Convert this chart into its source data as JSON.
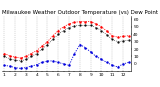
{
  "title": "Milwaukee Weather Outdoor Temperature (vs) Dew Point (Last 24 Hours)",
  "background_color": "#ffffff",
  "temp": [
    14,
    11,
    9,
    8,
    10,
    14,
    18,
    24,
    30,
    38,
    45,
    50,
    54,
    56,
    57,
    57,
    57,
    54,
    50,
    44,
    38,
    36,
    37,
    38
  ],
  "dew": [
    -2,
    -3,
    -5,
    -6,
    -5,
    -3,
    -1,
    2,
    4,
    4,
    2,
    0,
    -2,
    14,
    26,
    22,
    16,
    10,
    6,
    2,
    -2,
    -4,
    0,
    2
  ],
  "felt": [
    10,
    7,
    5,
    4,
    6,
    10,
    14,
    20,
    26,
    33,
    40,
    45,
    49,
    51,
    52,
    52,
    52,
    49,
    45,
    39,
    33,
    30,
    31,
    32
  ],
  "n_points": 24,
  "x_tick_positions": [
    0,
    1,
    2,
    3,
    4,
    5,
    6,
    7,
    8,
    9,
    10,
    11,
    12,
    13,
    14,
    15,
    16,
    17,
    18,
    19,
    20,
    21,
    22,
    23
  ],
  "x_tick_labels": [
    "1",
    "",
    "2",
    "",
    "3",
    "",
    "4",
    "",
    "5",
    "",
    "6",
    "",
    "7",
    "",
    "8",
    "",
    "9",
    "",
    "10",
    "",
    "11",
    "",
    "12",
    ""
  ],
  "ylim": [
    -10,
    65
  ],
  "yticks": [
    0,
    10,
    20,
    30,
    40,
    50,
    60
  ],
  "temp_color": "#ff0000",
  "dew_color": "#0000dd",
  "felt_color": "#000000",
  "grid_color": "#aaaaaa",
  "title_fontsize": 4.0,
  "tick_fontsize": 3.2
}
